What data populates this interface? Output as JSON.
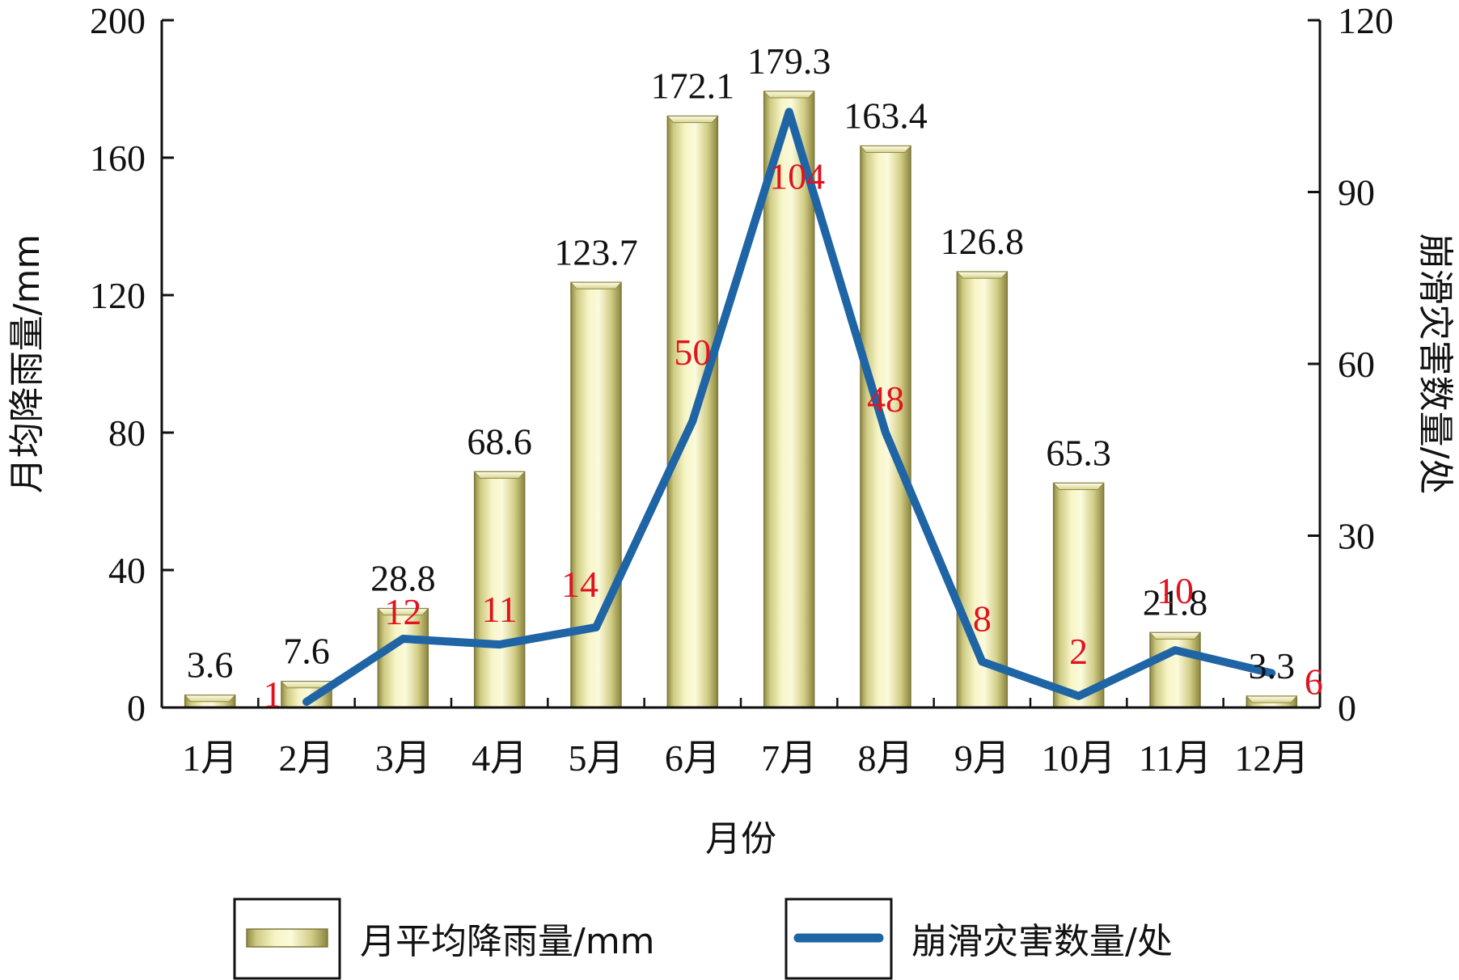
{
  "chart_data": {
    "type": "bar+line",
    "title": "",
    "categories": [
      "1月",
      "2月",
      "3月",
      "4月",
      "5月",
      "6月",
      "7月",
      "8月",
      "9月",
      "10月",
      "11月",
      "12月"
    ],
    "xlabel": "月份",
    "ylabel_left": "月均降雨量/mm",
    "ylabel_right": "崩滑灾害数量/处",
    "ylim_left": [
      0,
      200
    ],
    "yticks_left": [
      0,
      40,
      80,
      120,
      160,
      200
    ],
    "ylim_right": [
      0,
      120
    ],
    "yticks_right": [
      0,
      30,
      60,
      90,
      120
    ],
    "grid": false,
    "legend_position": "bottom",
    "series": [
      {
        "name": "月平均降雨量/mm",
        "type": "bar",
        "axis": "left",
        "values": [
          3.6,
          7.6,
          28.8,
          68.6,
          123.7,
          172.1,
          179.3,
          163.4,
          126.8,
          65.3,
          21.8,
          3.3
        ],
        "labels": [
          "3.6",
          "7.6",
          "28.8",
          "68.6",
          "123.7",
          "172.1",
          "179.3",
          "163.4",
          "126.8",
          "65.3",
          "21.8",
          "3.3"
        ],
        "color": "#e6e4a2"
      },
      {
        "name": "崩滑灾害数量/处",
        "type": "line",
        "axis": "right",
        "values": [
          null,
          1,
          12,
          11,
          14,
          50,
          104,
          48,
          8,
          2,
          10,
          6
        ],
        "labels": [
          "",
          "1",
          "12",
          "11",
          "14",
          "50",
          "104",
          "48",
          "8",
          "2",
          "10",
          "6"
        ],
        "color": "#1f64a4",
        "label_color": "#e0141e"
      }
    ]
  }
}
